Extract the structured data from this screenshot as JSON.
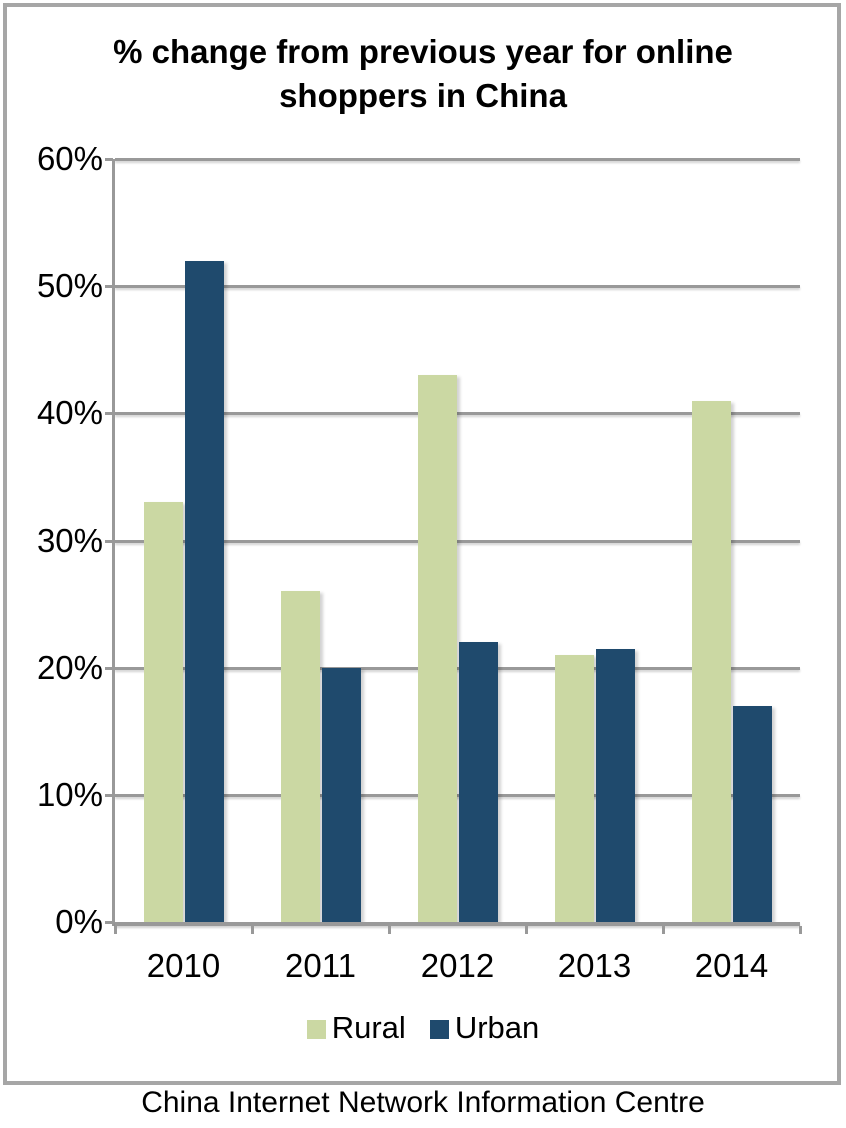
{
  "chart_data": {
    "type": "bar",
    "title": "% change from previous year for online shoppers in China",
    "categories": [
      "2010",
      "2011",
      "2012",
      "2013",
      "2014"
    ],
    "series": [
      {
        "name": "Rural",
        "color": "#cbd8a3",
        "values": [
          33,
          26,
          43,
          21,
          41
        ]
      },
      {
        "name": "Urban",
        "color": "#1f4a6d",
        "values": [
          52,
          20,
          22,
          21.5,
          17
        ]
      }
    ],
    "xlabel": "",
    "ylabel": "",
    "ylim": [
      0,
      60
    ],
    "y_tick_interval": 10,
    "y_tick_labels": [
      "0%",
      "10%",
      "20%",
      "30%",
      "40%",
      "50%",
      "60%"
    ],
    "grid": true,
    "legend_position": "bottom",
    "source": "China Internet Network Information Centre"
  },
  "colors": {
    "rural_bar": "#cbd8a3",
    "urban_bar": "#1f4a6d",
    "gridline": "#999999",
    "axis": "#999999",
    "frame_border": "#a6a6a6",
    "background": "#ffffff",
    "text": "#000000"
  }
}
